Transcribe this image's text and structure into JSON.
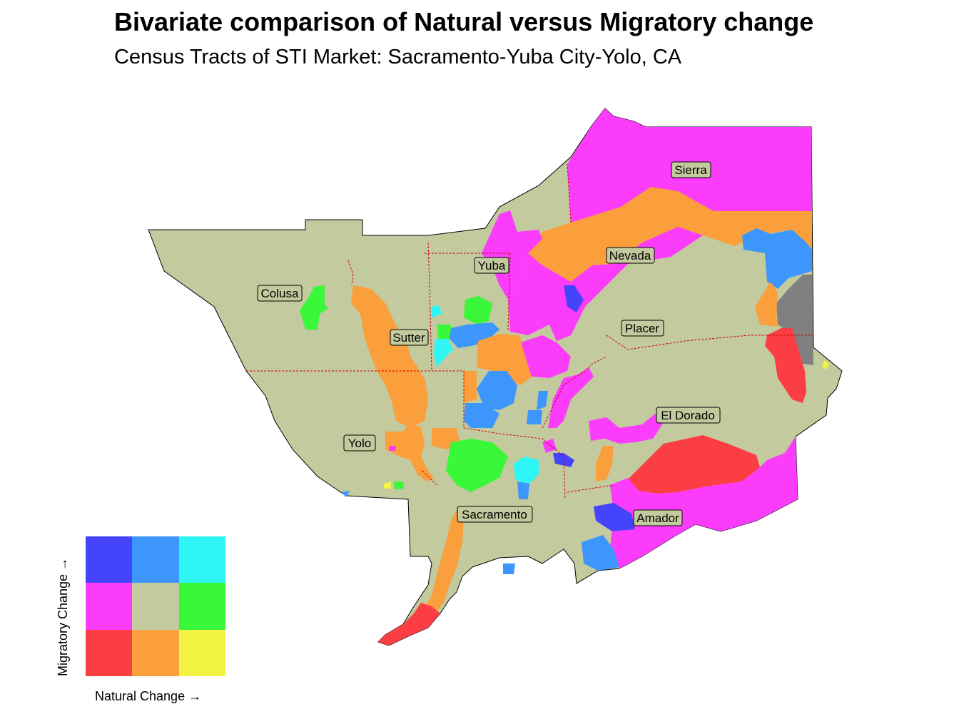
{
  "title": "Bivariate comparison of Natural versus Migratory change",
  "subtitle": "Census Tracts of STI Market: Sacramento-Yuba City-Yolo, CA",
  "counties": [
    "Sierra",
    "Nevada",
    "Yuba",
    "Colusa",
    "Sutter",
    "Placer",
    "El Dorado",
    "Yolo",
    "Sacramento",
    "Amador"
  ],
  "legend": {
    "x_label": "Natural Change →",
    "y_label": "Migratory Change →",
    "colors": [
      [
        "#4444fb",
        "#3c96fb",
        "#2ff6f6"
      ],
      [
        "#fb3cfb",
        "#c3ca9e",
        "#39f739"
      ],
      [
        "#fb3e44",
        "#fb9e3c",
        "#f3f343"
      ]
    ]
  },
  "colors": {
    "base": "#c3ca9e",
    "border": "#000000",
    "county_border": "#cc0000",
    "nodata": "#808080"
  }
}
